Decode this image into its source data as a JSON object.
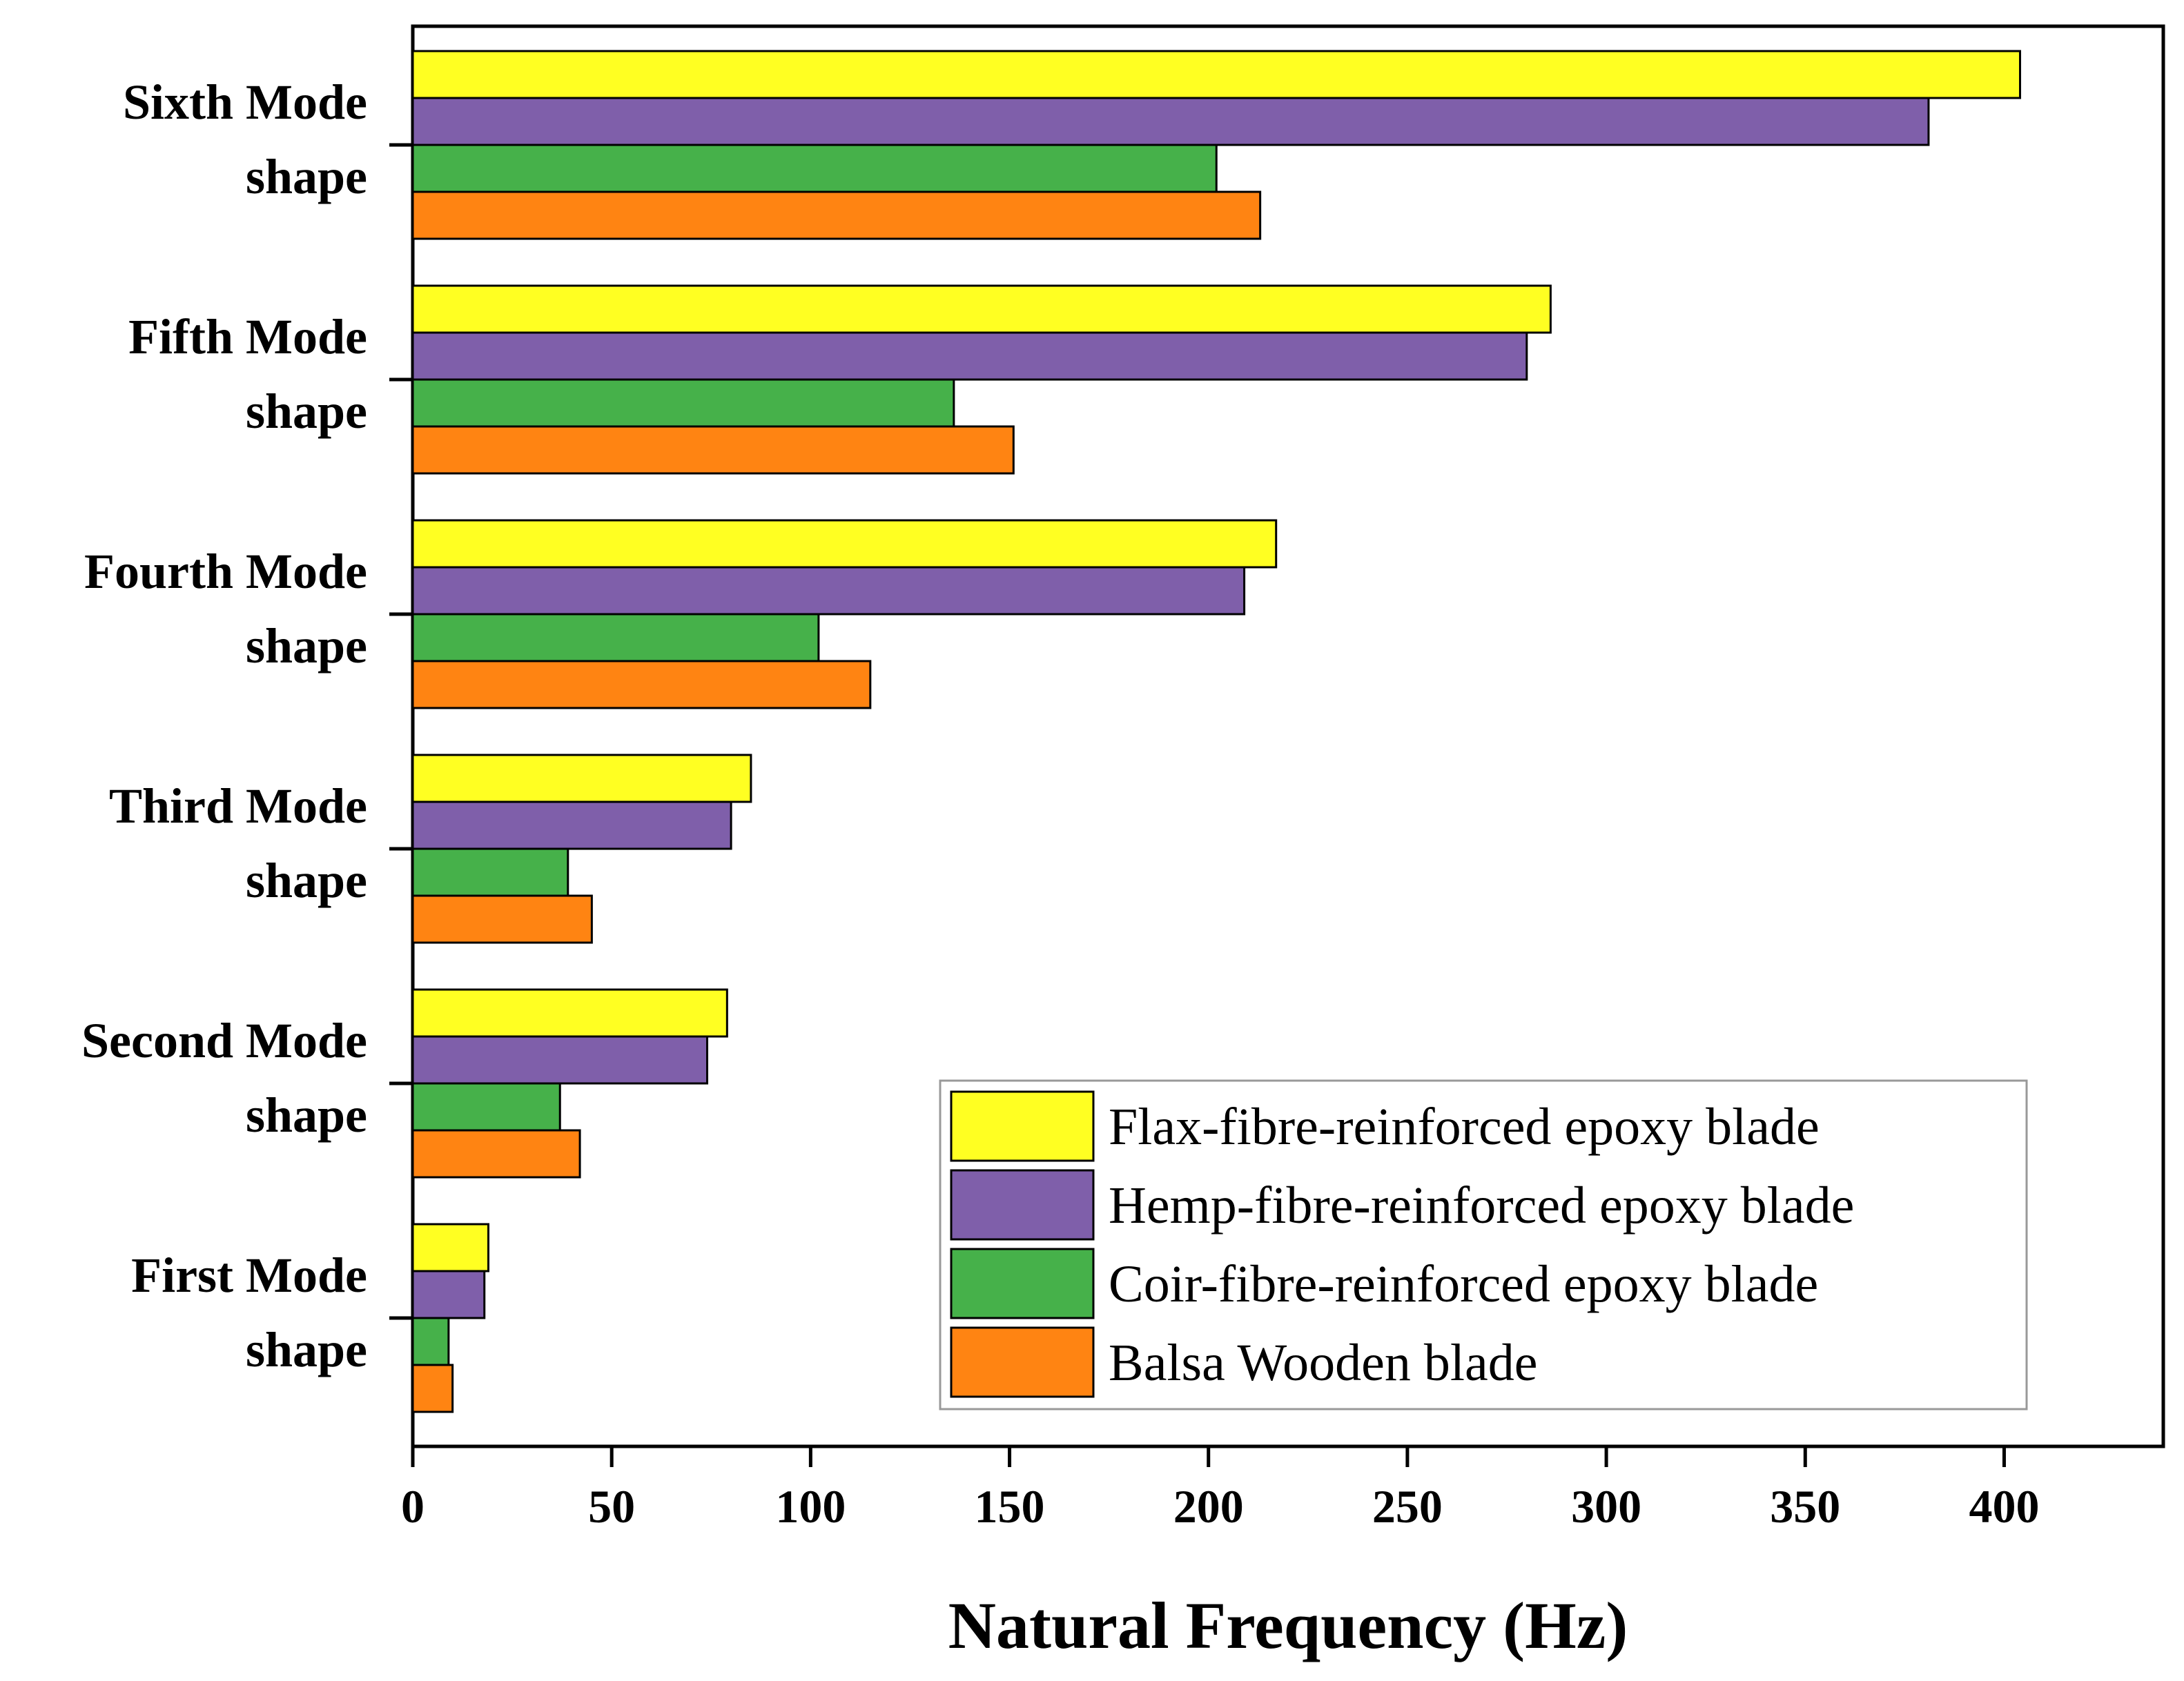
{
  "chart_data": {
    "type": "bar",
    "orientation": "horizontal",
    "title": "",
    "xlabel": "Natural Frequency (Hz)",
    "ylabel": "",
    "xlim": [
      0,
      440
    ],
    "xticks": [
      0,
      50,
      100,
      150,
      200,
      250,
      300,
      350,
      400
    ],
    "categories": [
      {
        "line1": "Sixth Mode",
        "line2": "shape"
      },
      {
        "line1": "Fifth Mode",
        "line2": "shape"
      },
      {
        "line1": "Fourth Mode",
        "line2": "shape"
      },
      {
        "line1": "Third Mode",
        "line2": "shape"
      },
      {
        "line1": "Second Mode",
        "line2": "shape"
      },
      {
        "line1": "First Mode",
        "line2": "shape"
      }
    ],
    "series": [
      {
        "name": "Flax-fibre-reinforced epoxy blade",
        "color": "#FFFF22",
        "values": [
          404,
          286,
          217,
          85,
          79,
          19
        ]
      },
      {
        "name": "Hemp-fibre-reinforced epoxy blade",
        "color": "#7F5FAA",
        "values": [
          381,
          280,
          209,
          80,
          74,
          18
        ]
      },
      {
        "name": "Coir-fibre-reinforced epoxy blade",
        "color": "#46B14A",
        "values": [
          202,
          136,
          102,
          39,
          37,
          9
        ]
      },
      {
        "name": "Balsa Wooden blade",
        "color": "#FF8412",
        "values": [
          213,
          151,
          115,
          45,
          42,
          10
        ]
      }
    ],
    "legend_position": "bottom-right",
    "grid": false
  }
}
